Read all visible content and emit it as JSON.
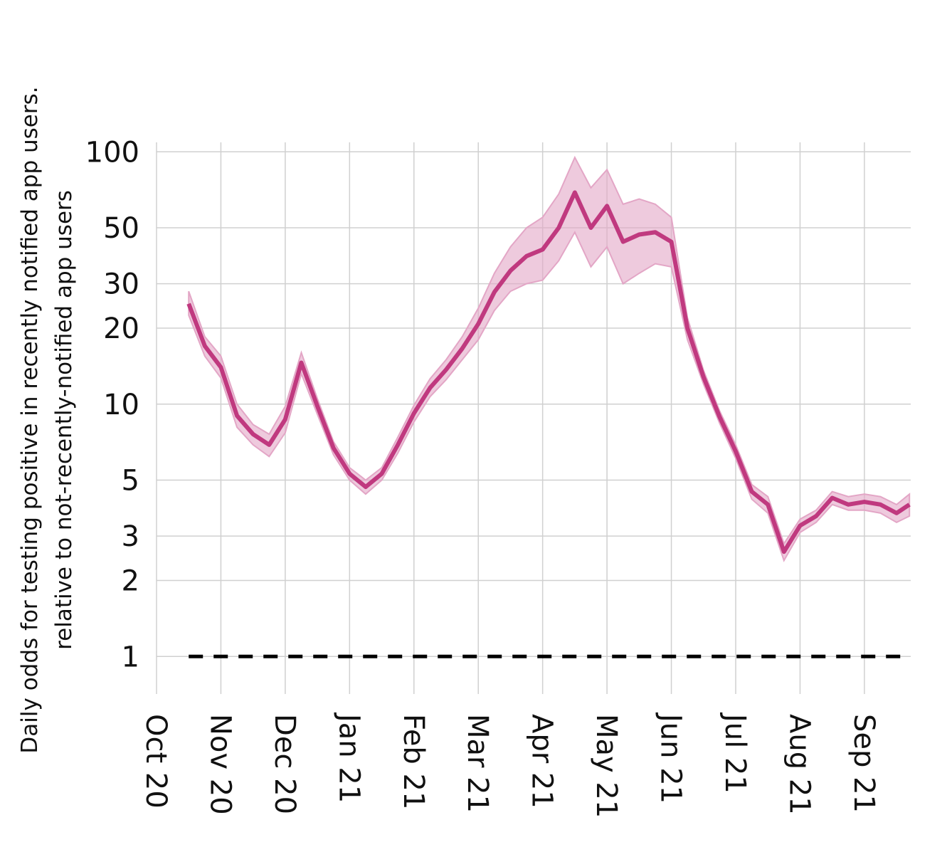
{
  "chart_data": {
    "type": "line",
    "ylabel": [
      "Daily odds for testing positive in recently notified app users.",
      "relative to not-recently-notified app users"
    ],
    "x": [
      0.5,
      0.75,
      1,
      1.25,
      1.5,
      1.75,
      2,
      2.25,
      2.5,
      2.75,
      3,
      3.25,
      3.5,
      3.75,
      4,
      4.25,
      4.5,
      4.75,
      5,
      5.25,
      5.5,
      5.75,
      6,
      6.25,
      6.5,
      6.75,
      7,
      7.25,
      7.5,
      7.75,
      8,
      8.25,
      8.5,
      8.75,
      9,
      9.25,
      9.5,
      9.75,
      10,
      10.25,
      10.5,
      10.75,
      11,
      11.25,
      11.5,
      11.7
    ],
    "series": [
      {
        "color": "#c0397f",
        "band_color": "#e3a6c6",
        "values": [
          25,
          17,
          14,
          9,
          7.6,
          6.9,
          8.7,
          14.6,
          9.8,
          6.7,
          5.3,
          4.7,
          5.3,
          6.9,
          9.2,
          11.6,
          13.7,
          16.6,
          20.8,
          27.8,
          33.8,
          38.6,
          41,
          50,
          69,
          50,
          61,
          44,
          47,
          48,
          44,
          20,
          12.8,
          8.9,
          6.5,
          4.5,
          4,
          2.6,
          3.3,
          3.6,
          4.25,
          4,
          4.1,
          4,
          3.7,
          4
        ],
        "upper": [
          28,
          18.5,
          15.5,
          10,
          8.3,
          7.6,
          9.8,
          16,
          10.5,
          7.1,
          5.6,
          5,
          5.6,
          7.4,
          9.9,
          12.6,
          15,
          18.5,
          24,
          33,
          42,
          50,
          55,
          68,
          95,
          72,
          85,
          62,
          65,
          62,
          55,
          22,
          13.6,
          9.4,
          6.9,
          4.8,
          4.3,
          2.8,
          3.5,
          3.8,
          4.5,
          4.3,
          4.4,
          4.3,
          4,
          4.4
        ],
        "lower": [
          22.5,
          15.5,
          12.7,
          8.1,
          6.9,
          6.2,
          7.7,
          13.2,
          9.1,
          6.3,
          5,
          4.4,
          5,
          6.4,
          8.5,
          10.7,
          12.5,
          15,
          18,
          23.5,
          28,
          30,
          31,
          37,
          48,
          35,
          42,
          30,
          33,
          36,
          35,
          18,
          12,
          8.4,
          6.1,
          4.2,
          3.7,
          2.4,
          3.1,
          3.4,
          4,
          3.8,
          3.8,
          3.7,
          3.4,
          3.6
        ]
      }
    ],
    "reference_line": 1,
    "xlim": [
      0,
      11.72
    ],
    "xticks": [
      {
        "value": 0,
        "label": "Oct 20"
      },
      {
        "value": 1,
        "label": "Nov 20"
      },
      {
        "value": 2,
        "label": "Dec 20"
      },
      {
        "value": 3,
        "label": "Jan 21"
      },
      {
        "value": 4,
        "label": "Feb 21"
      },
      {
        "value": 5,
        "label": "Mar 21"
      },
      {
        "value": 6,
        "label": "Apr 21"
      },
      {
        "value": 7,
        "label": "May 21"
      },
      {
        "value": 8,
        "label": "Jun 21"
      },
      {
        "value": 9,
        "label": "Jul 21"
      },
      {
        "value": 10,
        "label": "Aug 21"
      },
      {
        "value": 11,
        "label": "Sep 21"
      }
    ],
    "ylim": [
      0.71,
      109
    ],
    "yticks": [
      1,
      2,
      3,
      5,
      10,
      20,
      30,
      50,
      100
    ],
    "log_y": true,
    "grid": true
  }
}
